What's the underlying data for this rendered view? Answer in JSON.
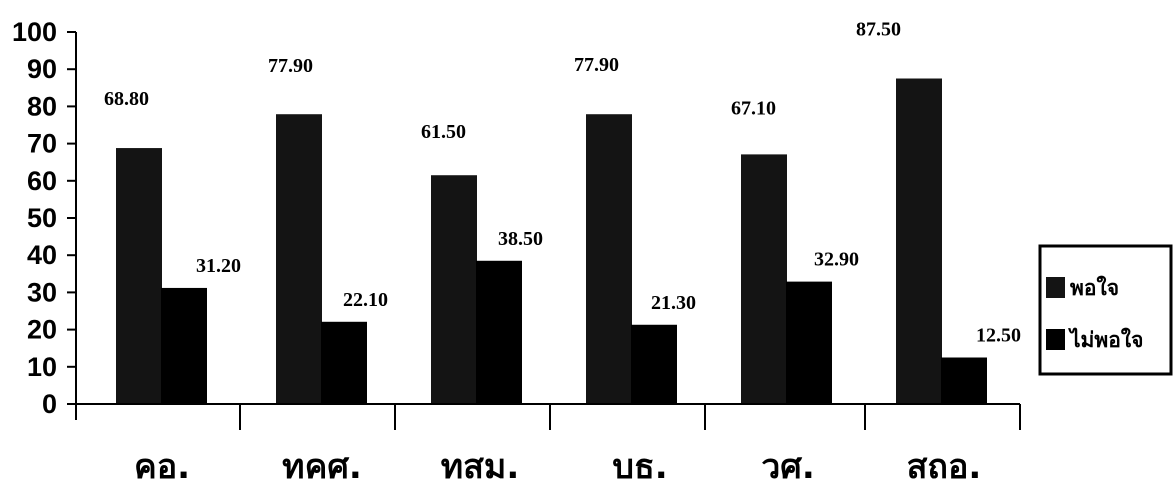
{
  "chart_data": {
    "type": "bar",
    "categories": [
      "คอ.",
      "ทคศ.",
      "ทสม.",
      "บธ.",
      "วศ.",
      "สถอ."
    ],
    "series": [
      {
        "name": "พอใจ",
        "values": [
          68.8,
          77.9,
          61.5,
          77.9,
          67.1,
          87.5
        ],
        "color": "#141414"
      },
      {
        "name": "ไม่พอใจ",
        "values": [
          31.2,
          22.1,
          38.5,
          21.3,
          32.9,
          12.5
        ],
        "color": "#000000"
      }
    ],
    "data_labels": [
      [
        "68.80",
        "77.90",
        "61.50",
        "77.90",
        "67.10",
        "87.50"
      ],
      [
        "31.20",
        "22.10",
        "38.50",
        "21.30",
        "32.90",
        "12.50"
      ]
    ],
    "ylim": [
      0,
      100
    ],
    "yticks": [
      0,
      10,
      20,
      30,
      40,
      50,
      60,
      70,
      80,
      90,
      100
    ],
    "grid": false,
    "legend_position": "right"
  }
}
